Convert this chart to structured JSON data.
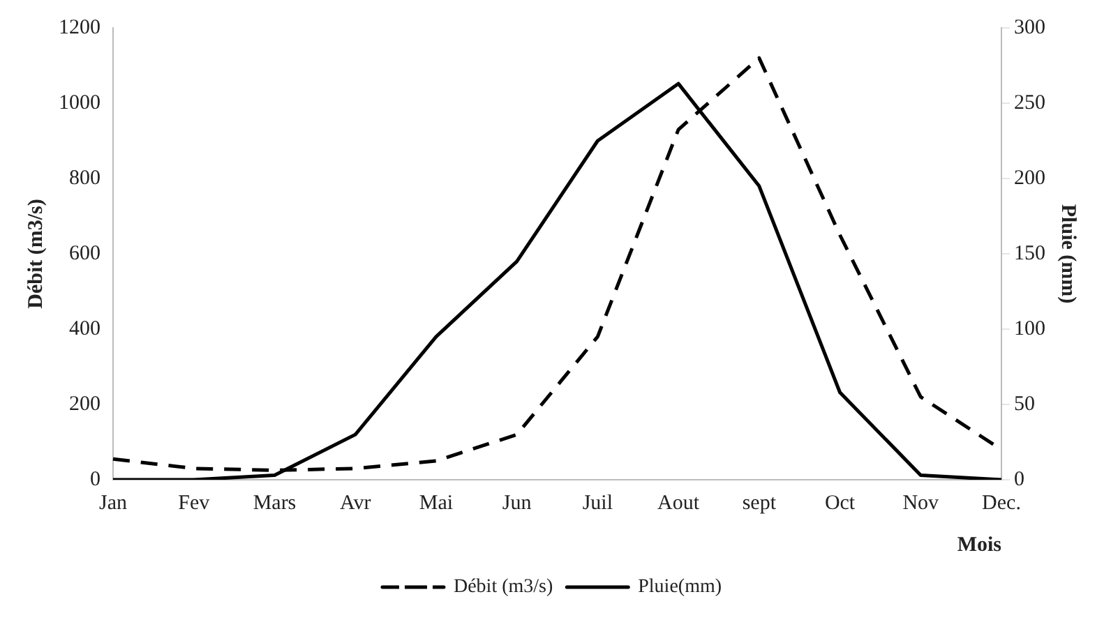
{
  "chart_data": {
    "type": "line",
    "xlabel": "Mois",
    "ylabel": "Débit (m3/s)",
    "y2label": "Pluie (mm)",
    "categories": [
      "Jan",
      "Fev",
      "Mars",
      "Avr",
      "Mai",
      "Jun",
      "Juil",
      "Aout",
      "sept",
      "Oct",
      "Nov",
      "Dec."
    ],
    "series": [
      {
        "name": "Débit (m3/s)",
        "color": "#000000",
        "line_style": "dashed",
        "values": [
          55,
          30,
          25,
          30,
          50,
          120,
          380,
          930,
          1120,
          650,
          220,
          80
        ]
      },
      {
        "name": "Pluie(mm)",
        "color": "#000000",
        "line_style": "solid",
        "axis": "y2",
        "values": [
          0,
          0,
          3,
          30,
          95,
          145,
          225,
          263,
          195,
          58,
          3,
          0
        ]
      }
    ],
    "ylim": [
      0,
      1200
    ],
    "yticks": [
      0,
      200,
      400,
      600,
      800,
      1000,
      1200
    ],
    "y2lim": [
      0,
      300
    ],
    "y2ticks": [
      0,
      50,
      100,
      150,
      200,
      250,
      300
    ],
    "grid": false,
    "legend": "bottom",
    "marker": "none"
  }
}
